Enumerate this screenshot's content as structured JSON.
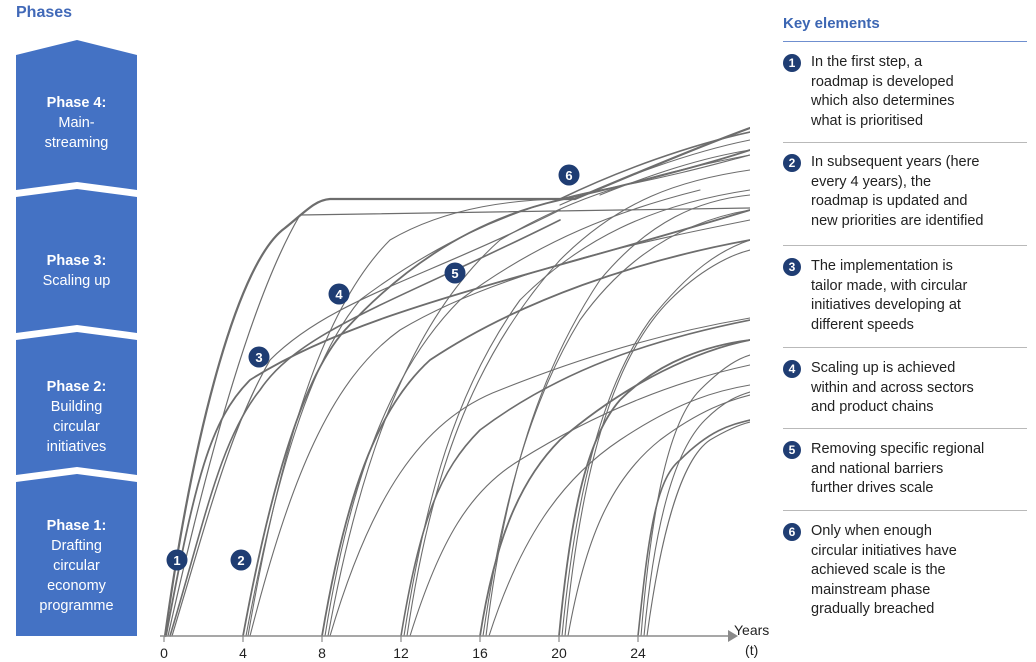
{
  "phases_title": "Phases",
  "phases": [
    {
      "label": "Phase 4:",
      "desc": [
        "Main-",
        "streaming"
      ]
    },
    {
      "label": "Phase 3:",
      "desc": [
        "Scaling up"
      ]
    },
    {
      "label": "Phase 2:",
      "desc": [
        "Building",
        "circular",
        "initiatives"
      ]
    },
    {
      "label": "Phase 1:",
      "desc": [
        "Drafting",
        "circular",
        "economy",
        "programme"
      ]
    }
  ],
  "key_title": "Key elements",
  "key_elements": [
    {
      "num": "1",
      "text": [
        "In the first step, a",
        "roadmap is developed",
        "which also determines",
        "what is prioritised"
      ]
    },
    {
      "num": "2",
      "text": [
        "In subsequent years (here",
        "every 4 years), the",
        "roadmap is updated and",
        "new priorities are identified"
      ]
    },
    {
      "num": "3",
      "text": [
        "The implementation is",
        "tailor made, with circular",
        "initiatives developing at",
        "different speeds"
      ]
    },
    {
      "num": "4",
      "text": [
        "Scaling up is achieved",
        "within and across sectors",
        "and product chains"
      ]
    },
    {
      "num": "5",
      "text": [
        "Removing specific regional",
        "and national barriers",
        "further drives scale"
      ]
    },
    {
      "num": "6",
      "text": [
        "Only when enough",
        "circular initiatives have",
        "achieved scale is the",
        "mainstream phase",
        "gradually breached"
      ]
    }
  ],
  "x_axis": {
    "ticks": [
      "0",
      "4",
      "8",
      "12",
      "16",
      "20",
      "24"
    ],
    "label_line1": "Years",
    "label_line2": "(t)"
  },
  "markers": [
    "1",
    "2",
    "3",
    "4",
    "5",
    "6"
  ],
  "colors": {
    "phase_fill": "#4472c4",
    "marker_fill": "#1f3d73",
    "curve": "#6d6d6d",
    "title": "#4169b8"
  }
}
